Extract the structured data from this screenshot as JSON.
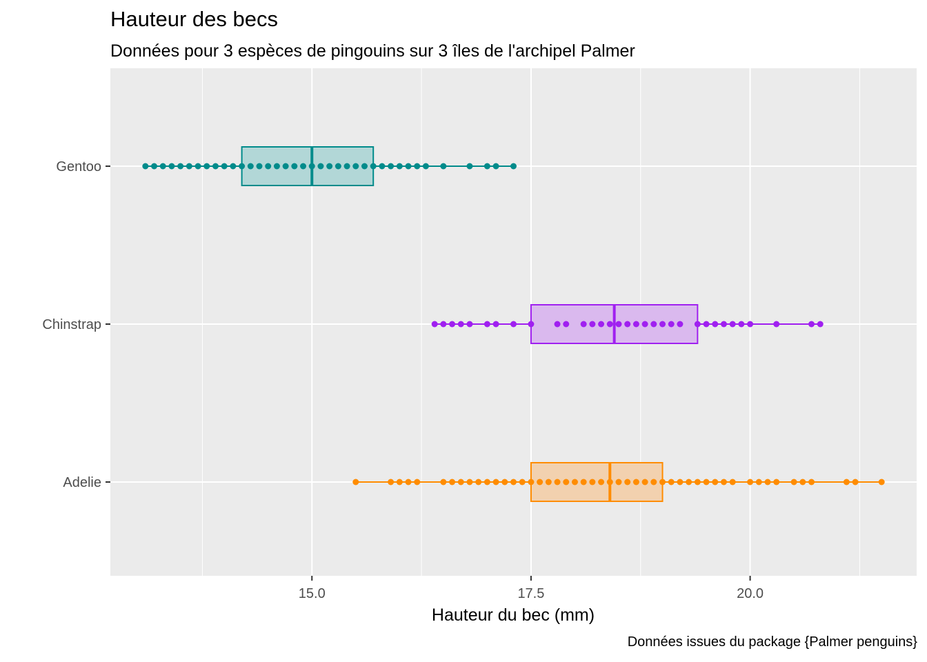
{
  "title": "Hauteur des becs",
  "subtitle": "Données pour 3 espèces de pingouins sur 3 îles de l'archipel Palmer",
  "caption": "Données issues du package {Palmer penguins}",
  "chart_data": {
    "type": "boxplot",
    "orientation": "horizontal",
    "xlabel": "Hauteur du bec (mm)",
    "ylabel": "",
    "xlim": [
      12.7,
      21.9
    ],
    "xticks": [
      15.0,
      17.5,
      20.0
    ],
    "xtick_labels": [
      "15.0",
      "17.5",
      "20.0"
    ],
    "grid": true,
    "background": "#EBEBEB",
    "categories": [
      "Gentoo",
      "Chinstrap",
      "Adelie"
    ],
    "series": [
      {
        "category": "Gentoo",
        "color": "#008B8B",
        "fill": "#B2D7D7",
        "box": {
          "q1": 14.2,
          "median": 15.0,
          "q3": 15.7,
          "whisker_low": 13.1,
          "whisker_high": 17.3
        },
        "points": [
          13.1,
          13.2,
          13.3,
          13.4,
          13.5,
          13.6,
          13.7,
          13.8,
          13.9,
          14.0,
          14.1,
          14.2,
          14.3,
          14.4,
          14.5,
          14.6,
          14.7,
          14.8,
          14.9,
          15.0,
          15.1,
          15.2,
          15.3,
          15.4,
          15.5,
          15.6,
          15.7,
          15.8,
          15.9,
          16.0,
          16.1,
          16.2,
          16.3,
          16.5,
          16.8,
          17.0,
          17.1,
          17.3
        ]
      },
      {
        "category": "Chinstrap",
        "color": "#A020F0",
        "fill": "#DAB9EE",
        "box": {
          "q1": 17.5,
          "median": 18.45,
          "q3": 19.4,
          "whisker_low": 16.4,
          "whisker_high": 20.8
        },
        "points": [
          16.4,
          16.5,
          16.6,
          16.7,
          16.8,
          17.0,
          17.1,
          17.3,
          17.5,
          17.8,
          17.9,
          18.1,
          18.2,
          18.3,
          18.4,
          18.5,
          18.6,
          18.7,
          18.8,
          18.9,
          19.0,
          19.1,
          19.2,
          19.4,
          19.5,
          19.6,
          19.7,
          19.8,
          19.9,
          20.0,
          20.3,
          20.7,
          20.8
        ]
      },
      {
        "category": "Adelie",
        "color": "#FF8C00",
        "fill": "#F2D1AF",
        "box": {
          "q1": 17.5,
          "median": 18.4,
          "q3": 19.0,
          "whisker_low": 15.5,
          "whisker_high": 21.5
        },
        "points": [
          15.5,
          15.9,
          16.0,
          16.1,
          16.2,
          16.5,
          16.6,
          16.7,
          16.8,
          16.9,
          17.0,
          17.1,
          17.2,
          17.3,
          17.4,
          17.5,
          17.6,
          17.7,
          17.8,
          17.9,
          18.0,
          18.1,
          18.2,
          18.3,
          18.4,
          18.5,
          18.6,
          18.7,
          18.8,
          18.9,
          19.0,
          19.1,
          19.2,
          19.3,
          19.4,
          19.5,
          19.6,
          19.7,
          19.8,
          20.0,
          20.1,
          20.2,
          20.3,
          20.5,
          20.6,
          20.7,
          21.1,
          21.2,
          21.5
        ]
      }
    ]
  }
}
